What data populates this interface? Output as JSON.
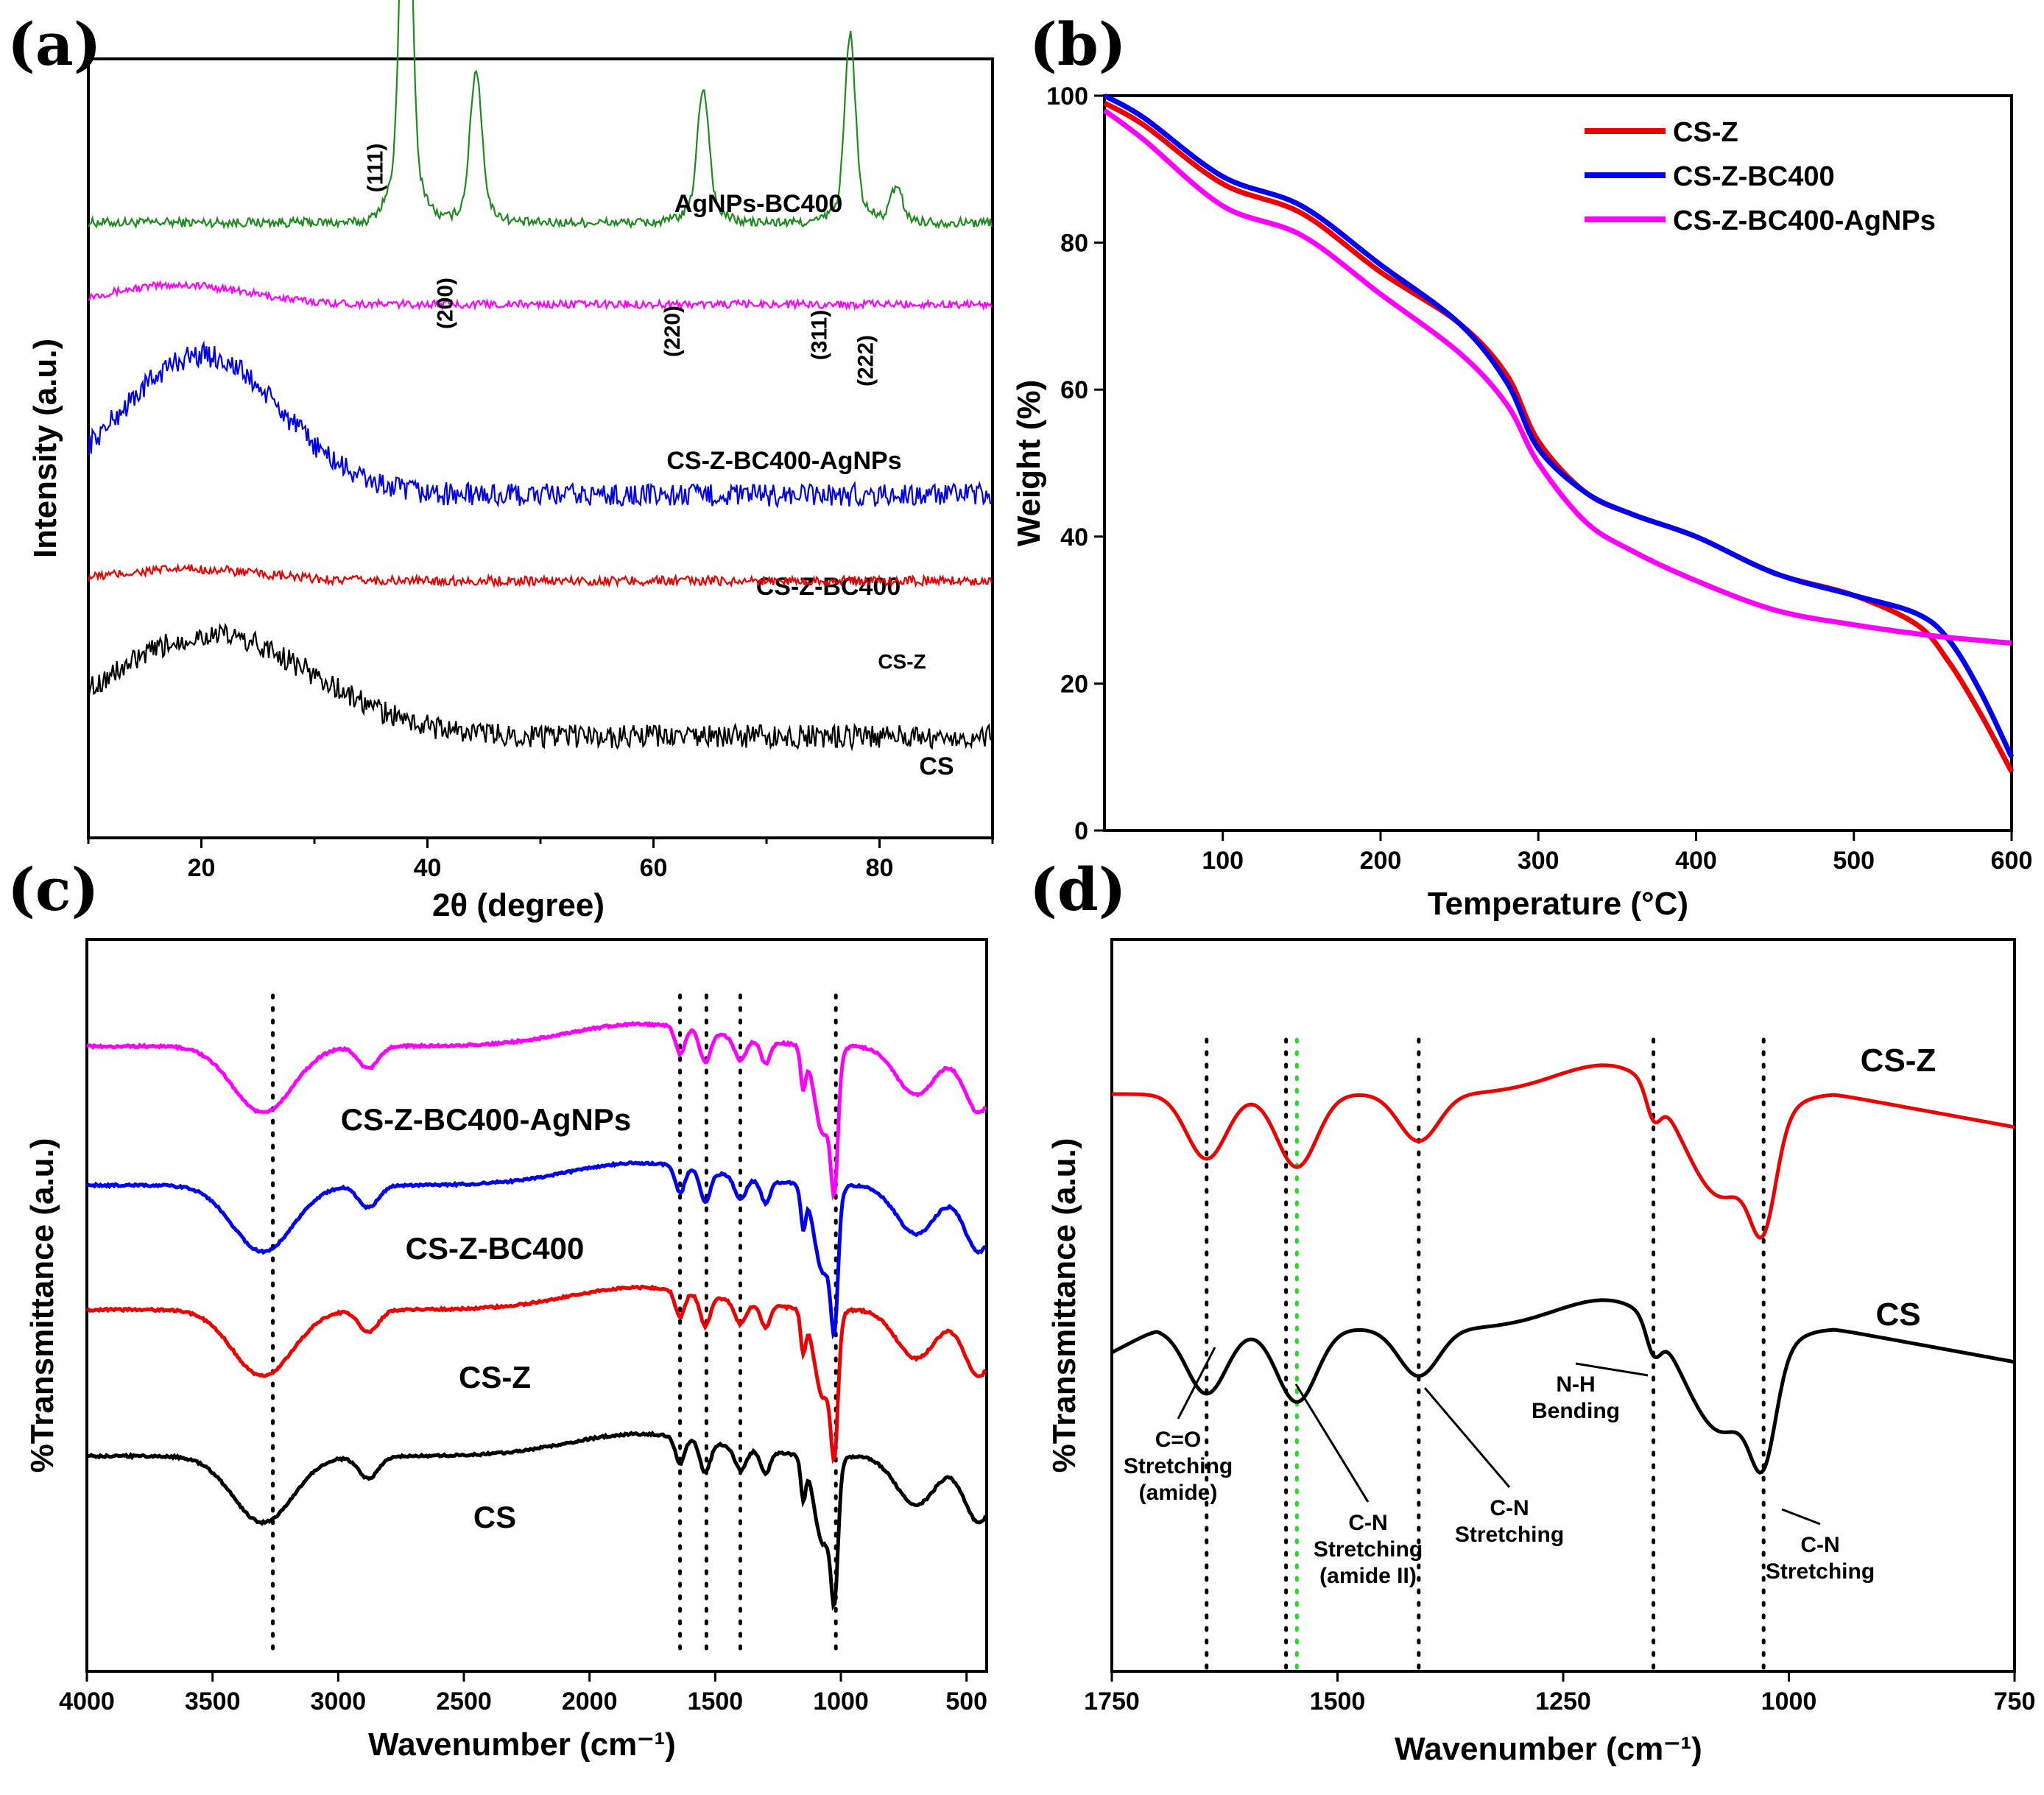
{
  "chart_data": [
    {
      "panel": "(a)",
      "type": "line",
      "xlabel": "2θ (degree)",
      "ylabel": "Intensity (a.u.)",
      "xlim": [
        10,
        90
      ],
      "xticks": [
        20,
        40,
        60,
        80
      ],
      "series": [
        {
          "name": "AgNPs-BC400",
          "color": "#1f8a1f",
          "base": 0.79,
          "peaks": [
            [
              38.1,
              0.55,
              0.45
            ],
            [
              44.3,
              0.17,
              0.5
            ],
            [
              64.4,
              0.15,
              0.5
            ],
            [
              77.4,
              0.21,
              0.45
            ],
            [
              81.5,
              0.04,
              0.5
            ]
          ],
          "hump": [
            0,
            20,
            8
          ],
          "noise": 0.012
        },
        {
          "name": "CS-Z-BC400-AgNPs",
          "color": "#ff00ff",
          "base": 0.685,
          "peaks": [],
          "hump": [
            0.025,
            18,
            6
          ],
          "noise": 0.01
        },
        {
          "name": "CS-Z-BC400",
          "color": "#0000ee",
          "base": 0.44,
          "peaks": [],
          "hump": [
            0.18,
            20,
            7
          ],
          "noise": 0.03
        },
        {
          "name": "CS-Z",
          "color": "#ee0000",
          "base": 0.33,
          "peaks": [],
          "hump": [
            0.015,
            19,
            6
          ],
          "noise": 0.012
        },
        {
          "name": "CS",
          "color": "#000000",
          "base": 0.13,
          "peaks": [],
          "hump": [
            0.13,
            21,
            9
          ],
          "noise": 0.03
        }
      ],
      "peak_labels": [
        "(111)",
        "(200)",
        "(220)",
        "(311)",
        "(222)"
      ],
      "peak_positions": [
        38.1,
        44.3,
        64.4,
        77.4,
        81.5
      ]
    },
    {
      "panel": "(b)",
      "type": "line",
      "xlabel": "Temperature (°C)",
      "ylabel": "Weight (%)",
      "xlim": [
        25,
        600
      ],
      "ylim": [
        0,
        100
      ],
      "xticks": [
        100,
        200,
        300,
        400,
        500,
        600
      ],
      "yticks": [
        0,
        20,
        40,
        60,
        80,
        100
      ],
      "legend_position": "top-right",
      "series": [
        {
          "name": "CS-Z",
          "color": "#ee0000",
          "x": [
            25,
            50,
            100,
            150,
            200,
            250,
            280,
            300,
            330,
            360,
            400,
            450,
            500,
            540,
            560,
            580,
            600
          ],
          "y": [
            99,
            96,
            88,
            84,
            76,
            69,
            62,
            53,
            46,
            43,
            40,
            35,
            32,
            28,
            23,
            16,
            8
          ]
        },
        {
          "name": "CS-Z-BC400",
          "color": "#0000ee",
          "x": [
            25,
            50,
            100,
            150,
            200,
            250,
            280,
            300,
            330,
            360,
            400,
            450,
            500,
            540,
            560,
            580,
            600
          ],
          "y": [
            100,
            97,
            89,
            85,
            77,
            69,
            61,
            52,
            46,
            43,
            40,
            35,
            32,
            29.5,
            26,
            19,
            10
          ]
        },
        {
          "name": "CS-Z-BC400-AgNPs",
          "color": "#ff00ff",
          "x": [
            25,
            50,
            100,
            150,
            200,
            250,
            280,
            300,
            330,
            360,
            400,
            450,
            500,
            550,
            600
          ],
          "y": [
            98,
            94,
            85,
            81,
            73,
            65,
            58,
            50,
            42,
            38,
            34,
            30,
            28,
            26.5,
            25.5
          ]
        }
      ]
    },
    {
      "panel": "(c)",
      "type": "line",
      "xlabel": "Wavenumber (cm⁻¹)",
      "ylabel": "%Transmittance (a.u.)",
      "xlim": [
        4000,
        420
      ],
      "xticks": [
        4000,
        3500,
        3000,
        2500,
        2000,
        1500,
        1000,
        500
      ],
      "dotted_lines": [
        3260,
        1640,
        1535,
        1400,
        1020
      ],
      "series": [
        {
          "name": "CS-Z-BC400-AgNPs",
          "color": "#ff00ff",
          "offset": 0.0
        },
        {
          "name": "CS-Z-BC400",
          "color": "#0000ee",
          "offset": 0.19
        },
        {
          "name": "CS-Z",
          "color": "#ee0000",
          "offset": 0.36
        },
        {
          "name": "CS",
          "color": "#000000",
          "offset": 0.56
        }
      ]
    },
    {
      "panel": "(d)",
      "type": "line",
      "xlabel": "Wavenumber (cm⁻¹)",
      "ylabel": "%Transmittance (a.u.)",
      "xlim": [
        1750,
        750
      ],
      "xticks": [
        1750,
        1500,
        1250,
        1000,
        750
      ],
      "dotted_lines": [
        1645,
        1557,
        1410,
        1150,
        1028
      ],
      "green_line": 1545,
      "series": [
        {
          "name": "CS-Z",
          "color": "#ee0000"
        },
        {
          "name": "CS",
          "color": "#000000"
        }
      ],
      "annotations": [
        {
          "lines": [
            "C=O",
            "Stretching",
            "(amide)"
          ]
        },
        {
          "lines": [
            "C-N",
            "Stretching",
            "(amide II)"
          ]
        },
        {
          "lines": [
            "C-N",
            "Stretching"
          ]
        },
        {
          "lines": [
            "N-H",
            "Bending"
          ]
        },
        {
          "lines": [
            "C-N",
            "Stretching"
          ]
        }
      ]
    }
  ]
}
